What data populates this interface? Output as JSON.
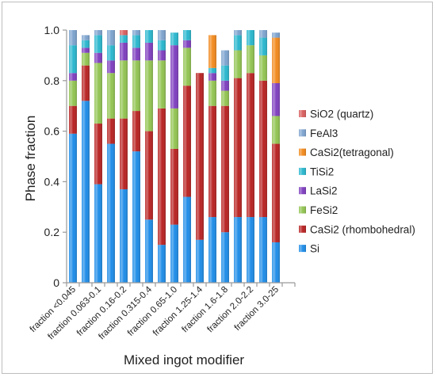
{
  "chart_data": {
    "type": "bar",
    "stacked": true,
    "xlabel": "Mixed ingot modifier",
    "ylabel": "Phase fraction",
    "ylim": [
      0,
      1
    ],
    "yticks": [
      "0",
      "0.2",
      "0.4",
      "0.6",
      "0.8",
      "1.0"
    ],
    "grid": false,
    "legend_position": "right",
    "categories": [
      "fraction <0.045",
      "",
      "fraction 0.063-0.1",
      "",
      "fraction 0.16-0.2",
      "",
      "fraction 0.315-0.4",
      "",
      "fraction 0.65-1.0",
      "",
      "fraction 1.25-1.4",
      "",
      "fraction 1.6-1.8",
      "",
      "fraction 2.0-2.2",
      "",
      "fraction 3.0-25",
      ""
    ],
    "series": [
      {
        "name": "Si",
        "color": "#1f8de8",
        "values": [
          0.59,
          0.72,
          0.39,
          0.55,
          0.37,
          0.52,
          0.25,
          0.15,
          0.23,
          0.34,
          0.17,
          0.26,
          0.2,
          0.26,
          0.26,
          0.26,
          0.16,
          0.0
        ]
      },
      {
        "name": "CaSi2 (rhombohedral)",
        "color": "#b92323",
        "values": [
          0.11,
          0.14,
          0.24,
          0.1,
          0.28,
          0.16,
          0.35,
          0.54,
          0.3,
          0.44,
          0.66,
          0.44,
          0.5,
          0.55,
          0.57,
          0.54,
          0.39,
          0.0
        ]
      },
      {
        "name": "FeSi2",
        "color": "#92c452",
        "values": [
          0.1,
          0.05,
          0.24,
          0.18,
          0.23,
          0.2,
          0.28,
          0.19,
          0.16,
          0.15,
          0.0,
          0.1,
          0.06,
          0.11,
          0.11,
          0.1,
          0.11,
          0.0
        ]
      },
      {
        "name": "LaSi2",
        "color": "#7f3fbf",
        "values": [
          0.03,
          0.02,
          0.04,
          0.05,
          0.07,
          0.05,
          0.07,
          0.04,
          0.25,
          0.03,
          0.0,
          0.03,
          0.04,
          0.0,
          0.0,
          0.0,
          0.13,
          0.0
        ]
      },
      {
        "name": "TiSi2",
        "color": "#2ab7ce",
        "values": [
          0.11,
          0.03,
          0.07,
          0.06,
          0.03,
          0.05,
          0.05,
          0.04,
          0.05,
          0.04,
          0.0,
          0.02,
          0.06,
          0.06,
          0.06,
          0.07,
          0.0,
          0.0
        ]
      },
      {
        "name": "CaSi2(tetragonal)",
        "color": "#f28a1e",
        "values": [
          0.0,
          0.0,
          0.0,
          0.0,
          0.0,
          0.0,
          0.0,
          0.0,
          0.0,
          0.0,
          0.0,
          0.13,
          0.0,
          0.0,
          0.0,
          0.0,
          0.18,
          0.0
        ]
      },
      {
        "name": "FeAl3",
        "color": "#7ea4cf",
        "values": [
          0.06,
          0.02,
          0.02,
          0.06,
          0.0,
          0.02,
          0.0,
          0.04,
          0.0,
          0.0,
          0.0,
          0.0,
          0.06,
          0.02,
          0.0,
          0.03,
          0.02,
          0.0
        ]
      },
      {
        "name": "SiO2 (quartz)",
        "color": "#d9605f",
        "values": [
          0.0,
          0.0,
          0.0,
          0.0,
          0.04,
          0.0,
          0.0,
          0.0,
          0.0,
          0.0,
          0.0,
          0.0,
          0.0,
          0.0,
          0.0,
          0.0,
          0.0,
          0.0
        ]
      }
    ],
    "legend_order": [
      "SiO2 (quartz)",
      "FeAl3",
      "CaSi2(tetragonal)",
      "TiSi2",
      "LaSi2",
      "FeSi2",
      "CaSi2 (rhombohedral)",
      "Si"
    ]
  }
}
